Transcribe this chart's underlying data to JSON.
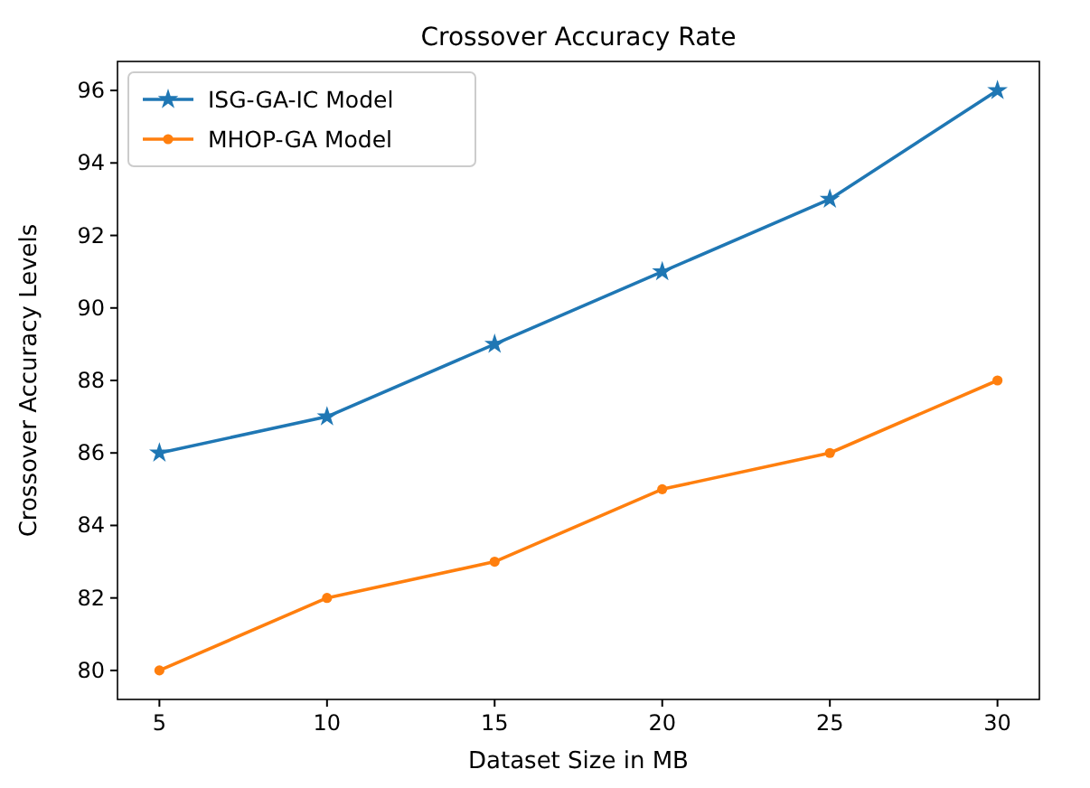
{
  "chart_data": {
    "type": "line",
    "title": "Crossover Accuracy Rate",
    "xlabel": "Dataset Size in MB",
    "ylabel": "Crossover Accuracy Levels",
    "x": [
      5,
      10,
      15,
      20,
      25,
      30
    ],
    "series": [
      {
        "name": "ISG-GA-IC Model",
        "color": "#1f77b4",
        "marker": "star",
        "values": [
          86,
          87,
          89,
          91,
          93,
          96
        ]
      },
      {
        "name": "MHOP-GA Model",
        "color": "#ff7f0e",
        "marker": "circle",
        "values": [
          80,
          82,
          83,
          85,
          86,
          88
        ]
      }
    ],
    "xlim": [
      3.75,
      31.25
    ],
    "ylim": [
      79.2,
      96.8
    ],
    "xticks": [
      5,
      10,
      15,
      20,
      25,
      30
    ],
    "yticks": [
      80,
      82,
      84,
      86,
      88,
      90,
      92,
      94,
      96
    ],
    "grid": false,
    "legend": "top left",
    "line_style": "solid"
  }
}
